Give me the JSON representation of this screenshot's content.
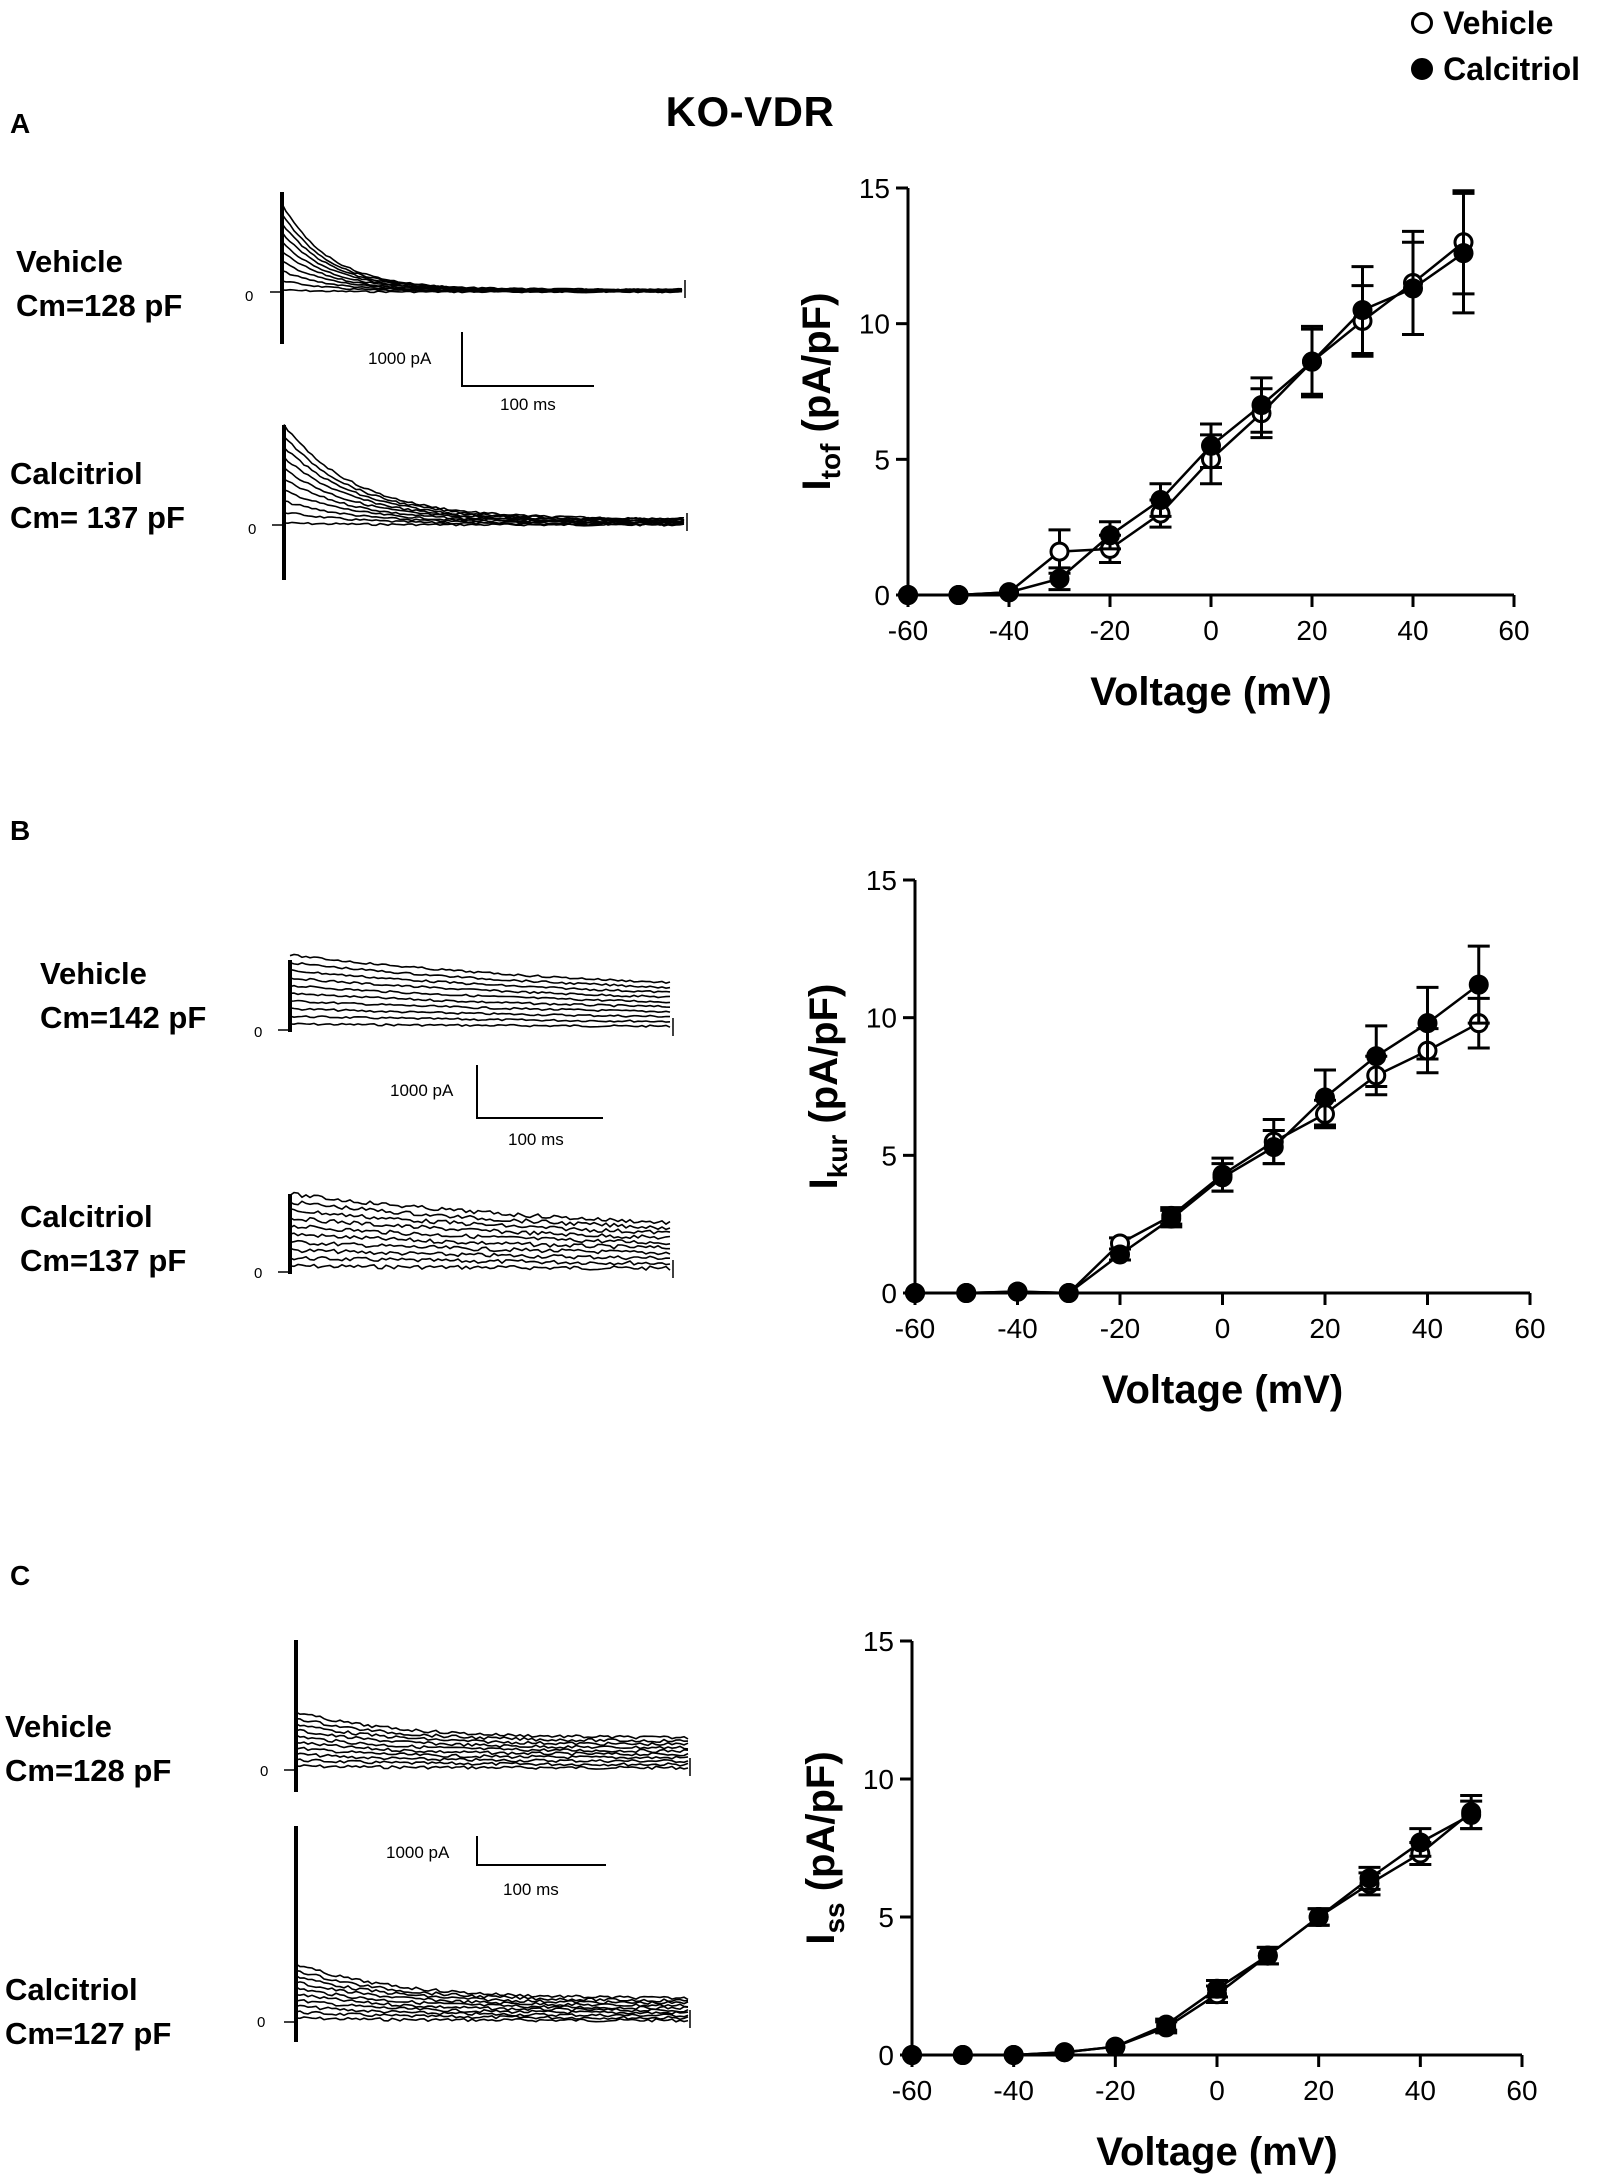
{
  "figure": {
    "title": "KO-VDR"
  },
  "legend": {
    "vehicle": "Vehicle",
    "calcitriol": "Calcitriol"
  },
  "panels": [
    {
      "letter": "A",
      "vehicle_label": "Vehicle",
      "vehicle_cm": "Cm=128 pF",
      "calcitriol_label": "Calcitriol",
      "calcitriol_cm": "Cm= 137 pF",
      "zero_label": "0",
      "scale_pA": "1000 pA",
      "scale_ms": "100 ms"
    },
    {
      "letter": "B",
      "vehicle_label": "Vehicle",
      "vehicle_cm": "Cm=142 pF",
      "calcitriol_label": "Calcitriol",
      "calcitriol_cm": "Cm=137 pF",
      "zero_label": "0",
      "scale_pA": "1000 pA",
      "scale_ms": "100 ms"
    },
    {
      "letter": "C",
      "vehicle_label": "Vehicle",
      "vehicle_cm": "Cm=128 pF",
      "calcitriol_label": "Calcitriol",
      "calcitriol_cm": "Cm=127 pF",
      "zero_label": "0",
      "scale_pA": "1000 pA",
      "scale_ms": "100 ms"
    }
  ],
  "chart_data": [
    {
      "type": "line",
      "id": "A",
      "ylabel_main": "I",
      "ylabel_sub": "tof",
      "ylabel_rest": " (pA/pF)",
      "xlabel": "Voltage (mV)",
      "xlim": [
        -60,
        60
      ],
      "ylim": [
        0,
        15
      ],
      "xticks": [
        -60,
        -40,
        -20,
        0,
        20,
        40,
        60
      ],
      "yticks": [
        0,
        5,
        10,
        15
      ],
      "x": [
        -60,
        -50,
        -40,
        -30,
        -20,
        -10,
        0,
        10,
        20,
        30,
        40,
        50
      ],
      "series": [
        {
          "name": "Vehicle",
          "marker": "open",
          "values": [
            0,
            0,
            0.1,
            1.6,
            1.7,
            3.0,
            5.0,
            6.7,
            8.6,
            10.1,
            11.5,
            13.0
          ],
          "errors": [
            0,
            0,
            0.1,
            0.8,
            0.5,
            0.5,
            0.9,
            0.9,
            1.3,
            1.3,
            1.9,
            1.9
          ]
        },
        {
          "name": "Calcitriol",
          "marker": "filled",
          "values": [
            0,
            0,
            0.1,
            0.6,
            2.2,
            3.5,
            5.5,
            7.0,
            8.6,
            10.5,
            11.3,
            12.6
          ],
          "errors": [
            0,
            0,
            0.1,
            0.4,
            0.5,
            0.6,
            0.8,
            1.0,
            1.2,
            1.6,
            1.7,
            2.2
          ]
        }
      ]
    },
    {
      "type": "line",
      "id": "B",
      "ylabel_main": "I",
      "ylabel_sub": "kur",
      "ylabel_rest": " (pA/pF)",
      "xlabel": "Voltage (mV)",
      "xlim": [
        -60,
        60
      ],
      "ylim": [
        0,
        15
      ],
      "xticks": [
        -60,
        -40,
        -20,
        0,
        20,
        40,
        60
      ],
      "yticks": [
        0,
        5,
        10,
        15
      ],
      "x": [
        -60,
        -50,
        -40,
        -30,
        -20,
        -10,
        0,
        10,
        20,
        30,
        40,
        50
      ],
      "series": [
        {
          "name": "Vehicle",
          "marker": "open",
          "values": [
            0,
            0,
            0.05,
            0,
            1.8,
            2.8,
            4.3,
            5.5,
            6.5,
            7.9,
            8.8,
            9.8
          ],
          "errors": [
            0,
            0,
            0,
            0,
            0.2,
            0.3,
            0.6,
            0.8,
            0.5,
            0.7,
            0.8,
            0.9
          ]
        },
        {
          "name": "Calcitriol",
          "marker": "filled",
          "values": [
            0,
            0,
            0.05,
            0,
            1.4,
            2.7,
            4.2,
            5.3,
            7.1,
            8.6,
            9.8,
            11.2
          ],
          "errors": [
            0,
            0,
            0,
            0,
            0.2,
            0.3,
            0.5,
            0.6,
            1.0,
            1.1,
            1.3,
            1.4
          ]
        }
      ]
    },
    {
      "type": "line",
      "id": "C",
      "ylabel_main": "I",
      "ylabel_sub": "ss",
      "ylabel_rest": " (pA/pF)",
      "xlabel": "Voltage (mV)",
      "xlim": [
        -60,
        60
      ],
      "ylim": [
        0,
        15
      ],
      "xticks": [
        -60,
        -40,
        -20,
        0,
        20,
        40,
        60
      ],
      "yticks": [
        0,
        5,
        10,
        15
      ],
      "x": [
        -60,
        -50,
        -40,
        -30,
        -20,
        -10,
        0,
        10,
        20,
        30,
        40,
        50
      ],
      "series": [
        {
          "name": "Vehicle",
          "marker": "open",
          "values": [
            0,
            0,
            0,
            0.1,
            0.3,
            1.0,
            2.2,
            3.6,
            5.0,
            6.2,
            7.3,
            8.8
          ],
          "errors": [
            0,
            0,
            0,
            0.1,
            0.1,
            0.2,
            0.3,
            0.3,
            0.3,
            0.4,
            0.4,
            0.6
          ]
        },
        {
          "name": "Calcitriol",
          "marker": "filled",
          "values": [
            0,
            0,
            0,
            0.1,
            0.3,
            1.1,
            2.4,
            3.6,
            5.0,
            6.4,
            7.7,
            8.7
          ],
          "errors": [
            0,
            0,
            0,
            0.1,
            0.1,
            0.2,
            0.3,
            0.3,
            0.3,
            0.4,
            0.5,
            0.5
          ]
        }
      ]
    }
  ]
}
